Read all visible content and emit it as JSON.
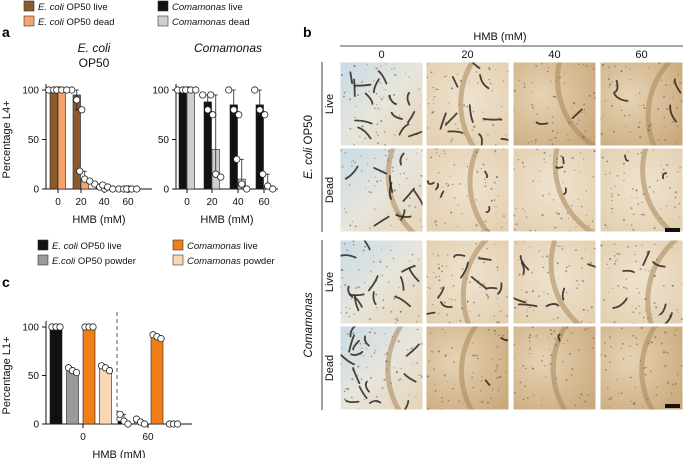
{
  "panel_labels": {
    "a": "a",
    "b": "b",
    "c": "c"
  },
  "colors": {
    "ecoli_live": "#8a5a2b",
    "ecoli_dead": "#f5a56b",
    "comamonas_live": "#111111",
    "comamonas_dead": "#cfcfcf",
    "ecoli_live_c": "#111111",
    "ecoli_powder_c": "#9a9a9a",
    "comamonas_live_c": "#f07f1a",
    "comamonas_powder_c": "#fad7b5",
    "micro_bg_light": "#eadcc6",
    "micro_bg_dark": "#cfb48e"
  },
  "legend_a": [
    {
      "italic": "E. coli",
      "rest": " OP50 live",
      "key": "ecoli_live"
    },
    {
      "italic": "Comamonas",
      "rest": " live",
      "key": "comamonas_live"
    },
    {
      "italic": "E. coli",
      "rest": " OP50 dead",
      "key": "ecoli_dead"
    },
    {
      "italic": "Comamonas",
      "rest": " dead",
      "key": "comamonas_dead"
    }
  ],
  "legend_c": [
    {
      "italic": "E. coli",
      "rest": " OP50 live",
      "key": "ecoli_live_c"
    },
    {
      "italic": "Comamonas",
      "rest": " live",
      "key": "comamonas_live_c"
    },
    {
      "italic": "E.coli",
      "rest": " OP50 powder",
      "key": "ecoli_powder_c"
    },
    {
      "italic": "Comamonas",
      "rest": " powder",
      "key": "comamonas_powder_c"
    }
  ],
  "chart_data": [
    {
      "panel": "a-left",
      "type": "bar",
      "title_italic": "E. coli",
      "title_line2": "OP50",
      "xlabel": "HMB (mM)",
      "ylabel": "Percentage L4+",
      "ylim": [
        0,
        100
      ],
      "yticks": [
        0,
        50,
        100
      ],
      "xticks": [
        "0",
        "20",
        "40",
        "60"
      ],
      "series": [
        {
          "name": "E. coli OP50 live",
          "key": "ecoli_live",
          "values": [
            100,
            95,
            2,
            0
          ],
          "points": [
            [
              100,
              100,
              100
            ],
            [
              100,
              90,
              80
            ],
            [
              5,
              2,
              0
            ],
            [
              0,
              0,
              0
            ]
          ]
        },
        {
          "name": "E. coli OP50 dead",
          "key": "ecoli_dead",
          "values": [
            100,
            10,
            2,
            0
          ],
          "points": [
            [
              100,
              100,
              100
            ],
            [
              18,
              10,
              8
            ],
            [
              4,
              2,
              0
            ],
            [
              0,
              0,
              0
            ]
          ]
        }
      ]
    },
    {
      "panel": "a-right",
      "type": "bar",
      "title_italic": "Comamonas",
      "xlabel": "HMB (mM)",
      "ylim": [
        0,
        100
      ],
      "yticks": [
        0,
        50,
        100
      ],
      "xticks": [
        "0",
        "20",
        "40",
        "60"
      ],
      "series": [
        {
          "name": "Comamonas live",
          "key": "comamonas_live",
          "values": [
            100,
            88,
            85,
            85
          ],
          "points": [
            [
              100,
              100,
              100
            ],
            [
              95,
              80,
              75
            ],
            [
              100,
              80,
              75
            ],
            [
              100,
              80,
              75
            ]
          ]
        },
        {
          "name": "Comamonas dead",
          "key": "comamonas_dead",
          "values": [
            100,
            40,
            10,
            3
          ],
          "points": [
            [
              100,
              100,
              100
            ],
            [
              95,
              15,
              12
            ],
            [
              30,
              5,
              0
            ],
            [
              15,
              3,
              0
            ]
          ]
        }
      ]
    },
    {
      "panel": "c",
      "type": "bar",
      "xlabel": "HMB (mM)",
      "ylabel": "Percentage L1+",
      "ylim": [
        0,
        100
      ],
      "yticks": [
        0,
        50,
        100
      ],
      "xticks": [
        "0",
        "60"
      ],
      "series": [
        {
          "name": "E. coli OP50 live",
          "key": "ecoli_live_c",
          "values": [
            100,
            3
          ],
          "points": [
            [
              100,
              100,
              100
            ],
            [
              10,
              3,
              0
            ]
          ]
        },
        {
          "name": "E.coli OP50 powder",
          "key": "ecoli_powder_c",
          "values": [
            55,
            2
          ],
          "points": [
            [
              58,
              55,
              53
            ],
            [
              5,
              2,
              0
            ]
          ]
        },
        {
          "name": "Comamonas live",
          "key": "comamonas_live_c",
          "values": [
            100,
            90
          ],
          "points": [
            [
              100,
              100,
              100
            ],
            [
              92,
              90,
              88
            ]
          ]
        },
        {
          "name": "Comamonas powder",
          "key": "comamonas_powder_c",
          "values": [
            58,
            0
          ],
          "points": [
            [
              60,
              58,
              55
            ],
            [
              0,
              0,
              0
            ]
          ]
        }
      ]
    }
  ],
  "panel_b": {
    "hmb_label": "HMB (mM)",
    "columns": [
      "0",
      "20",
      "40",
      "60"
    ],
    "groups": [
      {
        "italic": "E. coli",
        "rest": " OP50",
        "rows": [
          "Live",
          "Dead"
        ]
      },
      {
        "italic": "Comamonas",
        "rest": "",
        "rows": [
          "Live",
          "Dead"
        ]
      }
    ]
  }
}
